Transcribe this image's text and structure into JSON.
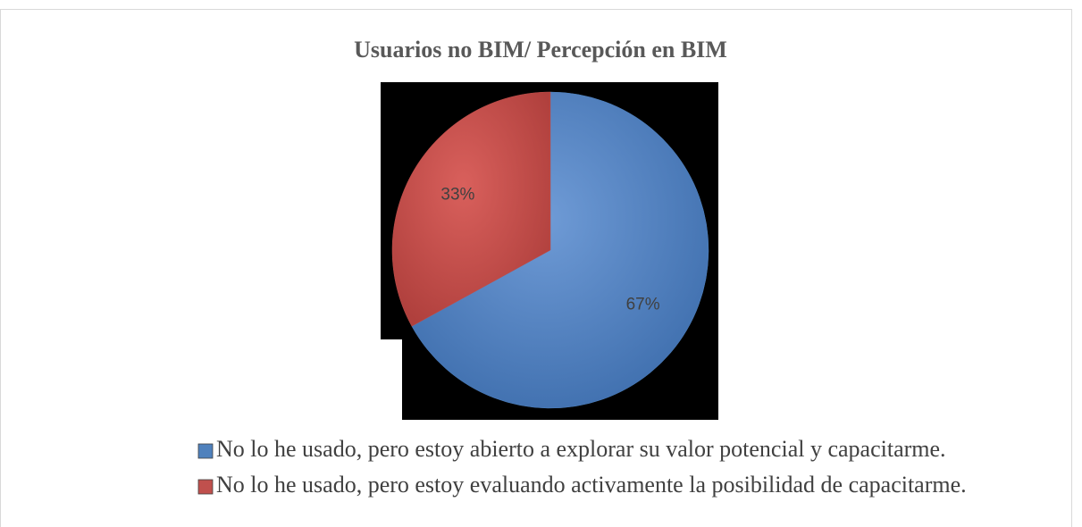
{
  "chart_data": {
    "type": "pie",
    "title": "Usuarios no BIM/ Percepción en BIM",
    "categories": [
      "No lo he usado, pero estoy abierto a explorar su valor potencial y capacitarme.",
      "No lo he usado, pero estoy evaluando activamente la posibilidad de capacitarme."
    ],
    "values": [
      67,
      33
    ],
    "value_labels": [
      "67%",
      "33%"
    ],
    "colors": [
      "#4f81bd",
      "#c0504d"
    ],
    "legend": "bottom"
  }
}
